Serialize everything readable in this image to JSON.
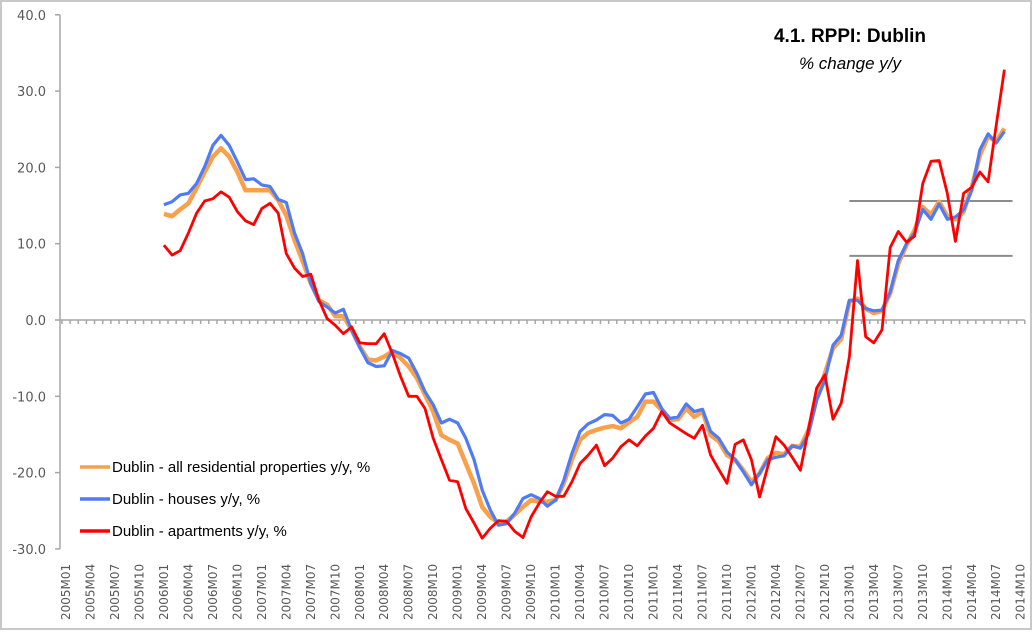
{
  "chart_data": {
    "type": "line",
    "title": "4.1. RPPI: Dublin",
    "subtitle": "% change y/y",
    "xlabel": "",
    "ylabel": "",
    "ylim": [
      -30,
      40
    ],
    "yticks": [
      "40.0",
      "30.0",
      "20.0",
      "10.0",
      "0.0",
      "-10.0",
      "-20.0",
      "-30.0"
    ],
    "ytick_values": [
      40,
      30,
      20,
      10,
      0,
      -10,
      -20,
      -30
    ],
    "xtick_every": 3,
    "grid": false,
    "legend_position": "bottom-left",
    "categories": [
      "2005M01",
      "2005M02",
      "2005M03",
      "2005M04",
      "2005M05",
      "2005M06",
      "2005M07",
      "2005M08",
      "2005M09",
      "2005M10",
      "2005M11",
      "2005M12",
      "2006M01",
      "2006M02",
      "2006M03",
      "2006M04",
      "2006M05",
      "2006M06",
      "2006M07",
      "2006M08",
      "2006M09",
      "2006M10",
      "2006M11",
      "2006M12",
      "2007M01",
      "2007M02",
      "2007M03",
      "2007M04",
      "2007M05",
      "2007M06",
      "2007M07",
      "2007M08",
      "2007M09",
      "2007M10",
      "2007M11",
      "2007M12",
      "2008M01",
      "2008M02",
      "2008M03",
      "2008M04",
      "2008M05",
      "2008M06",
      "2008M07",
      "2008M08",
      "2008M09",
      "2008M10",
      "2008M11",
      "2008M12",
      "2009M01",
      "2009M02",
      "2009M03",
      "2009M04",
      "2009M05",
      "2009M06",
      "2009M07",
      "2009M08",
      "2009M09",
      "2009M10",
      "2009M11",
      "2009M12",
      "2010M01",
      "2010M02",
      "2010M03",
      "2010M04",
      "2010M05",
      "2010M06",
      "2010M07",
      "2010M08",
      "2010M09",
      "2010M10",
      "2010M11",
      "2010M12",
      "2011M01",
      "2011M02",
      "2011M03",
      "2011M04",
      "2011M05",
      "2011M06",
      "2011M07",
      "2011M08",
      "2011M09",
      "2011M10",
      "2011M11",
      "2011M12",
      "2012M01",
      "2012M02",
      "2012M03",
      "2012M04",
      "2012M05",
      "2012M06",
      "2012M07",
      "2012M08",
      "2012M09",
      "2012M10",
      "2012M11",
      "2012M12",
      "2013M01",
      "2013M02",
      "2013M03",
      "2013M04",
      "2013M05",
      "2013M06",
      "2013M07",
      "2013M08",
      "2013M09",
      "2013M10",
      "2013M11",
      "2013M12",
      "2014M01",
      "2014M02",
      "2014M03",
      "2014M04",
      "2014M05",
      "2014M06",
      "2014M07",
      "2014M08",
      "2014M09",
      "2014M10"
    ],
    "series": [
      {
        "name": "Dublin - all residential properties y/y, %",
        "color": "#F9A04B",
        "values": [
          null,
          null,
          null,
          null,
          null,
          null,
          null,
          null,
          null,
          null,
          null,
          null,
          13.9,
          13.6,
          14.5,
          15.3,
          17.3,
          19.4,
          21.4,
          22.5,
          21.4,
          19.4,
          17.0,
          17.0,
          17.0,
          17.0,
          15.7,
          13.7,
          10.5,
          7.7,
          4.8,
          2.6,
          2.0,
          0.5,
          0.5,
          -1.3,
          -3.5,
          -5.2,
          -5.3,
          -4.8,
          -4.1,
          -5.0,
          -6.1,
          -7.6,
          -9.8,
          -12.0,
          -15.1,
          -15.7,
          -16.2,
          -18.8,
          -21.4,
          -24.5,
          -25.8,
          -26.6,
          -26.4,
          -25.5,
          -24.5,
          -23.6,
          -23.8,
          -23.8,
          -23.6,
          -21.4,
          -18.3,
          -15.7,
          -14.8,
          -14.4,
          -14.1,
          -13.9,
          -14.2,
          -13.4,
          -12.7,
          -10.7,
          -10.7,
          -11.8,
          -13.1,
          -13.0,
          -11.6,
          -12.7,
          -12.0,
          -15.1,
          -15.9,
          -17.7,
          -18.3,
          -19.7,
          -21.2,
          -20.1,
          -18.1,
          -17.4,
          -17.6,
          -16.5,
          -16.6,
          -14.4,
          -10.2,
          -7.0,
          -3.7,
          -2.5,
          2.4,
          2.8,
          1.5,
          0.9,
          1.2,
          3.5,
          7.4,
          9.8,
          11.8,
          14.8,
          13.8,
          15.5,
          13.6,
          13.2,
          14.2,
          17.4,
          21.6,
          24.1,
          23.4,
          25.1,
          null,
          null
        ]
      },
      {
        "name": "Dublin - houses y/y, %",
        "color": "#4F7CF6",
        "values": [
          null,
          null,
          null,
          null,
          null,
          null,
          null,
          null,
          null,
          null,
          null,
          null,
          15.1,
          15.5,
          16.4,
          16.6,
          17.9,
          20.1,
          22.9,
          24.2,
          22.9,
          20.7,
          18.4,
          18.5,
          17.7,
          17.5,
          15.8,
          15.4,
          11.4,
          8.7,
          4.8,
          2.4,
          1.7,
          0.9,
          1.4,
          -1.3,
          -3.6,
          -5.6,
          -6.1,
          -6.0,
          -4.0,
          -4.4,
          -5.0,
          -7.0,
          -9.4,
          -11.1,
          -13.5,
          -13.0,
          -13.5,
          -15.5,
          -18.3,
          -22.3,
          -24.9,
          -26.9,
          -26.7,
          -25.3,
          -23.4,
          -22.9,
          -23.4,
          -24.4,
          -23.6,
          -21.0,
          -17.5,
          -14.6,
          -13.6,
          -13.1,
          -12.4,
          -12.5,
          -13.5,
          -13.0,
          -11.4,
          -9.7,
          -9.5,
          -11.6,
          -12.9,
          -12.7,
          -11.0,
          -12.0,
          -11.7,
          -14.6,
          -15.5,
          -17.3,
          -18.3,
          -19.9,
          -21.6,
          -20.1,
          -18.3,
          -18.0,
          -17.8,
          -16.5,
          -16.8,
          -14.9,
          -10.5,
          -7.9,
          -3.3,
          -2.0,
          2.6,
          2.6,
          1.5,
          1.2,
          1.3,
          3.7,
          7.8,
          10.0,
          11.4,
          14.5,
          13.2,
          15.2,
          13.2,
          13.5,
          14.4,
          17.0,
          22.3,
          24.4,
          23.2,
          24.7,
          null,
          null
        ]
      },
      {
        "name": "Dublin - apartments y/y, %",
        "color": "#FF0000",
        "values": [
          null,
          null,
          null,
          null,
          null,
          null,
          null,
          null,
          null,
          null,
          null,
          null,
          9.8,
          8.5,
          9.1,
          11.4,
          14.0,
          15.6,
          15.9,
          16.8,
          16.1,
          14.2,
          13.0,
          12.5,
          14.6,
          15.3,
          14.0,
          8.7,
          6.8,
          5.7,
          6.0,
          2.6,
          0.2,
          -0.7,
          -1.8,
          -0.9,
          -3.0,
          -3.1,
          -3.1,
          -1.8,
          -4.4,
          -7.4,
          -10.0,
          -10.0,
          -11.6,
          -15.5,
          -18.3,
          -21.0,
          -21.2,
          -24.7,
          -26.6,
          -28.6,
          -27.3,
          -26.3,
          -26.4,
          -27.7,
          -28.5,
          -25.8,
          -24.0,
          -22.5,
          -23.1,
          -23.1,
          -21.2,
          -18.8,
          -17.7,
          -16.4,
          -19.1,
          -18.1,
          -16.6,
          -15.7,
          -16.5,
          -15.2,
          -14.2,
          -12.0,
          -13.5,
          -14.2,
          -14.9,
          -15.5,
          -13.8,
          -17.7,
          -19.6,
          -21.4,
          -16.3,
          -15.7,
          -18.3,
          -23.2,
          -19.2,
          -15.3,
          -16.4,
          -18.0,
          -19.7,
          -14.2,
          -8.9,
          -7.2,
          -13.0,
          -10.9,
          -4.8,
          7.8,
          -2.2,
          -3.0,
          -1.3,
          9.5,
          11.6,
          10.2,
          11.0,
          17.9,
          20.8,
          20.9,
          16.6,
          10.3,
          16.6,
          17.4,
          19.4,
          18.1,
          25.5,
          32.8,
          null,
          null
        ]
      }
    ],
    "reference_lines": [
      {
        "y": 15.6,
        "from": "2013M01",
        "to": "2014M09",
        "color": "#8C8C8C"
      },
      {
        "y": 8.4,
        "from": "2013M01",
        "to": "2014M09",
        "color": "#8C8C8C"
      }
    ]
  }
}
